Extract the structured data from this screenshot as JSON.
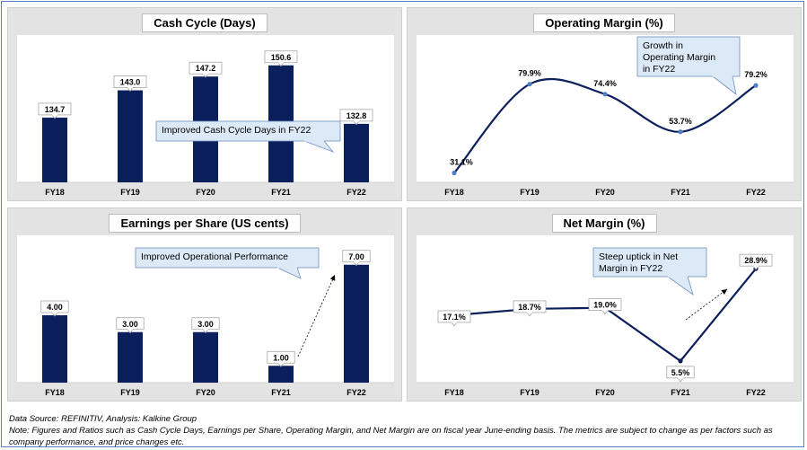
{
  "chart_data": [
    {
      "type": "bar",
      "title": "Cash Cycle (Days)",
      "categories": [
        "FY18",
        "FY19",
        "FY20",
        "FY21",
        "FY22"
      ],
      "values": [
        134.7,
        143.0,
        147.2,
        150.6,
        132.8
      ],
      "labels": [
        "134.7",
        "143.0",
        "147.2",
        "150.6",
        "132.8"
      ],
      "ylim": [
        115,
        156
      ],
      "color": "#0b1f5c",
      "annotation": "Improved Cash Cycle Days in FY22"
    },
    {
      "type": "line",
      "title": "Operating Margin (%)",
      "categories": [
        "FY18",
        "FY19",
        "FY20",
        "FY21",
        "FY22"
      ],
      "values": [
        31.1,
        79.9,
        74.4,
        53.7,
        79.2
      ],
      "labels": [
        "31.1%",
        "79.9%",
        "74.4%",
        "53.7%",
        "79.2%"
      ],
      "ylim": [
        20,
        100
      ],
      "color": "#0b1f5c",
      "marker_color": "#4f7ec4",
      "annotation": "Growth in Operating Margin in FY22"
    },
    {
      "type": "bar",
      "title": "Earnings per Share (US cents)",
      "categories": [
        "FY18",
        "FY19",
        "FY20",
        "FY21",
        "FY22"
      ],
      "values": [
        4.0,
        3.0,
        3.0,
        1.0,
        7.0
      ],
      "labels": [
        "4.00",
        "3.00",
        "3.00",
        "1.00",
        "7.00"
      ],
      "ylim": [
        0,
        8
      ],
      "color": "#0b1f5c",
      "annotation": "Improved Operational Performance"
    },
    {
      "type": "line",
      "title": "Net Margin (%)",
      "categories": [
        "FY18",
        "FY19",
        "FY20",
        "FY21",
        "FY22"
      ],
      "values": [
        17.1,
        18.7,
        19.0,
        5.5,
        28.9
      ],
      "labels": [
        "17.1%",
        "18.7%",
        "19.0%",
        "5.5%",
        "28.9%"
      ],
      "ylim": [
        0,
        36
      ],
      "color": "#0b1f5c",
      "annotation": "Steep uptick in Net Margin in FY22"
    }
  ],
  "footer": {
    "source": "Data Source: REFINITIV, Analysis: Kalkine Group",
    "note": "Note: Figures and Ratios such as Cash Cycle Days, Earnings per Share, Operating Margin, and Net Margin are on fiscal year June-ending basis. The metrics are subject to change as per factors such as company performance, and price changes etc."
  }
}
